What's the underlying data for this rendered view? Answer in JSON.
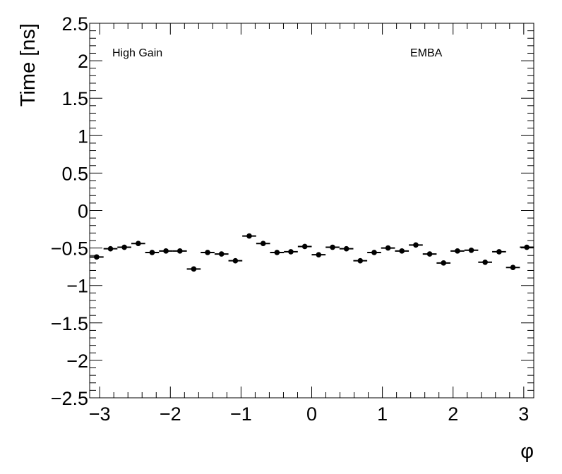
{
  "chart_data": {
    "type": "scatter",
    "xlabel": "φ",
    "ylabel": "Time [ns]",
    "xlim": [
      -3.1416,
      3.1416
    ],
    "ylim": [
      -2.5,
      2.5
    ],
    "x_ticks": [
      -3,
      -2,
      -1,
      0,
      1,
      2,
      3
    ],
    "x_tick_labels": [
      "−3",
      "−2",
      "−1",
      "0",
      "1",
      "2",
      "3"
    ],
    "y_ticks": [
      2.5,
      2,
      1.5,
      1,
      0.5,
      0,
      -0.5,
      -1,
      -1.5,
      -2,
      -2.5
    ],
    "y_tick_labels": [
      "2.5",
      "2",
      "1.5",
      "1",
      "0.5",
      "0",
      "−0.5",
      "−1",
      "−1.5",
      "−2",
      "−2.5"
    ],
    "annotations": [
      "High Gain",
      "EMBA"
    ],
    "grid": false,
    "marker_color": "#000000",
    "series": [
      {
        "x": [
          -3.043,
          -2.847,
          -2.651,
          -2.454,
          -2.258,
          -2.062,
          -1.865,
          -1.669,
          -1.473,
          -1.276,
          -1.08,
          -0.884,
          -0.687,
          -0.491,
          -0.295,
          -0.098,
          0.098,
          0.295,
          0.491,
          0.687,
          0.884,
          1.08,
          1.276,
          1.473,
          1.669,
          1.865,
          2.062,
          2.258,
          2.454,
          2.651,
          2.847,
          3.043
        ],
        "y": [
          -0.62,
          -0.51,
          -0.49,
          -0.44,
          -0.56,
          -0.54,
          -0.54,
          -0.78,
          -0.56,
          -0.58,
          -0.67,
          -0.34,
          -0.44,
          -0.56,
          -0.55,
          -0.48,
          -0.59,
          -0.49,
          -0.51,
          -0.67,
          -0.56,
          -0.5,
          -0.54,
          -0.46,
          -0.58,
          -0.7,
          -0.54,
          -0.53,
          -0.69,
          -0.55,
          -0.76,
          -0.49
        ]
      }
    ]
  }
}
